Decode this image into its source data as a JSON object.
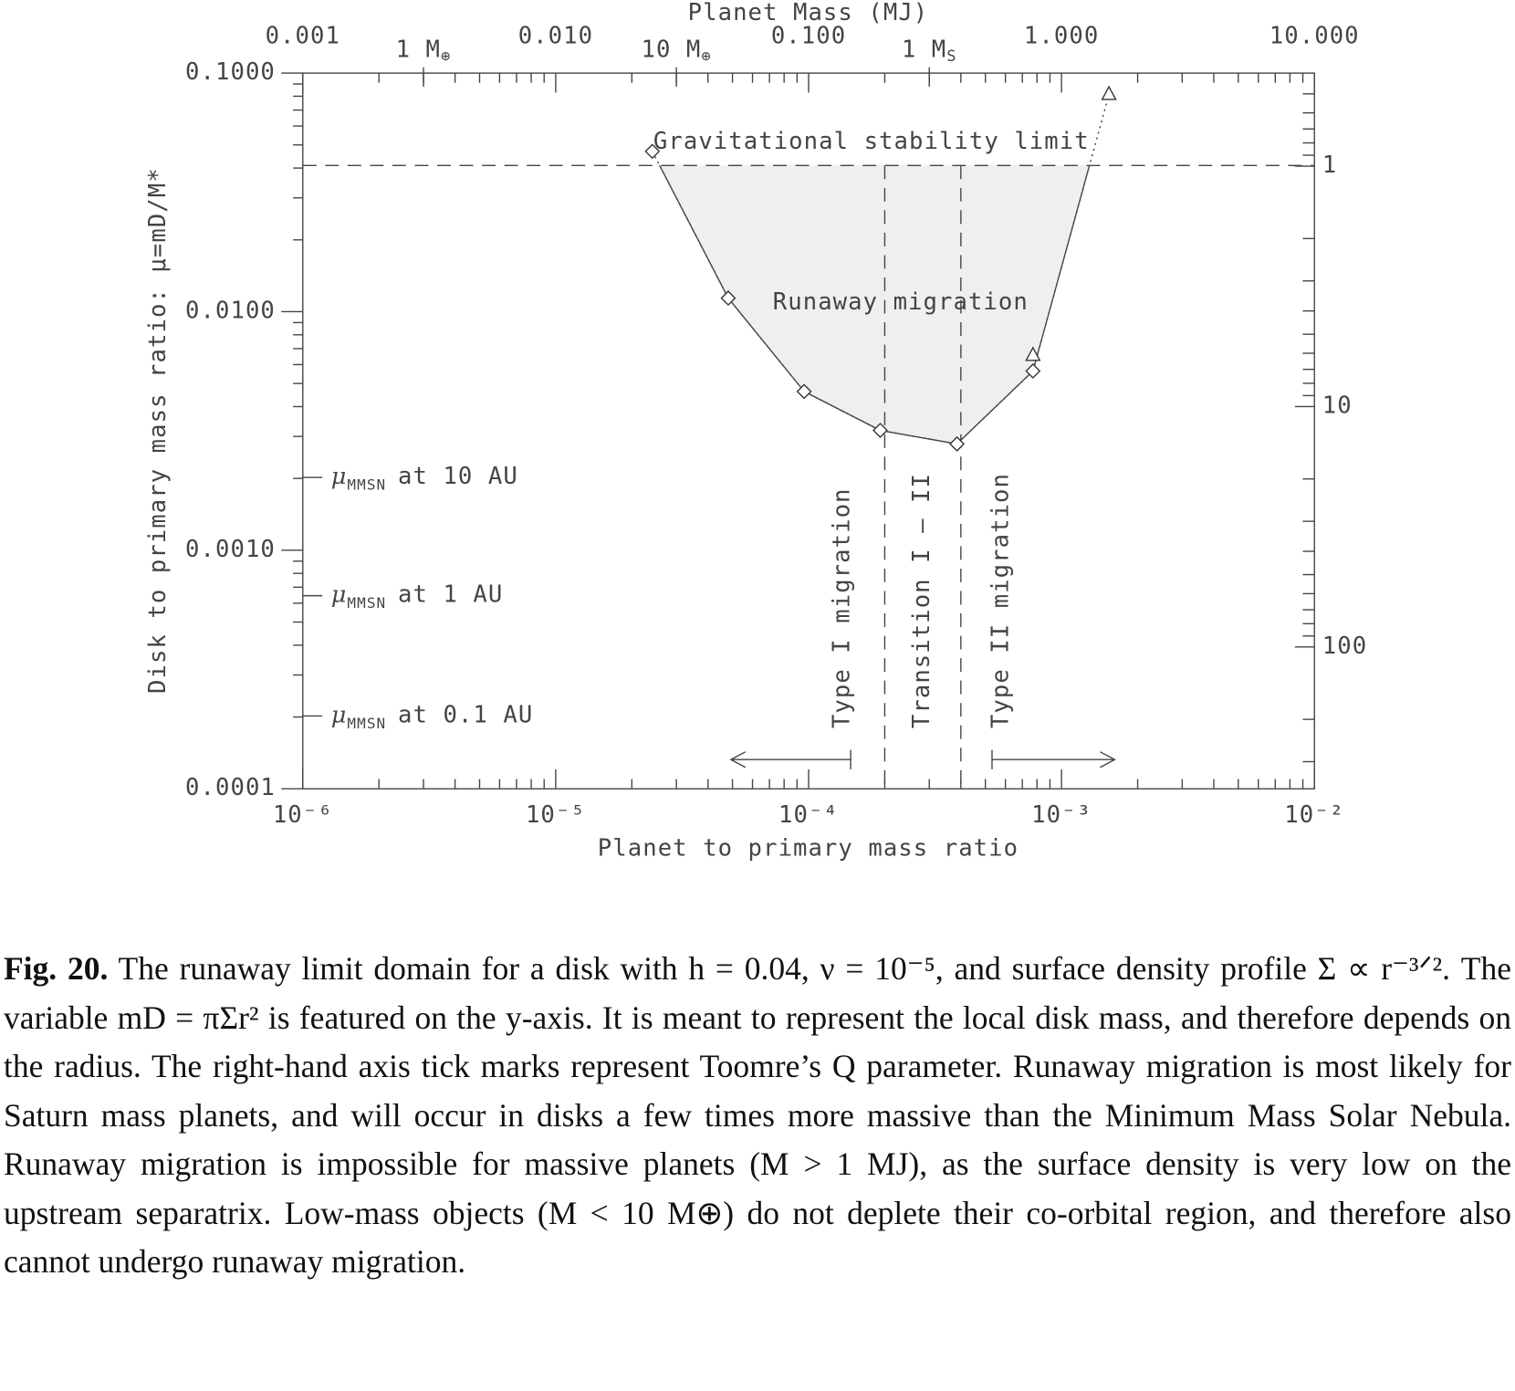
{
  "chart_data": {
    "type": "scatter",
    "x_label": "Planet to primary mass ratio",
    "y_label": "Disk to primary mass ratio: μ=mD/M*",
    "x2_label": "Planet Mass (MJ)",
    "xscale": "log",
    "yscale": "log",
    "xlim": [
      1e-06,
      0.01
    ],
    "xticks": [
      {
        "value": 1e-06,
        "label": "10⁻⁶"
      },
      {
        "value": 1e-05,
        "label": "10⁻⁵"
      },
      {
        "value": 0.0001,
        "label": "10⁻⁴"
      },
      {
        "value": 0.001,
        "label": "10⁻³"
      },
      {
        "value": 0.01,
        "label": "10⁻²"
      }
    ],
    "ylim": [
      0.0001,
      0.1
    ],
    "yticks": [
      {
        "value": 0.0001,
        "label": "0.0001"
      },
      {
        "value": 0.001,
        "label": "0.0010"
      },
      {
        "value": 0.01,
        "label": "0.0100"
      },
      {
        "value": 0.1,
        "label": "0.1000"
      }
    ],
    "x2lim": [
      0.001,
      10
    ],
    "x2ticks": [
      {
        "value": 0.001,
        "label": "0.001"
      },
      {
        "value": 0.01,
        "label": "0.010"
      },
      {
        "value": 0.1,
        "label": "0.100"
      },
      {
        "value": 1,
        "label": "1.000"
      },
      {
        "value": 10,
        "label": "10.000"
      }
    ],
    "x2_markers": [
      {
        "value": 0.003,
        "base": "1 M",
        "sub": "⊕"
      },
      {
        "value": 0.03,
        "base": "10 M",
        "sub": "⊕"
      },
      {
        "value": 0.3,
        "base": "1 M",
        "sub": "S"
      }
    ],
    "y2lim": [
      389,
      0.41
    ],
    "y2ticks": [
      1,
      10,
      100
    ],
    "color": "#333333",
    "fill_color": "#efefef",
    "series": [
      {
        "marker": "diamond",
        "x": [
          2.41e-05,
          4.81e-05,
          9.6e-05,
          0.000192,
          0.000386,
          0.000771
        ],
        "values": [
          0.047,
          0.0114,
          0.00463,
          0.00318,
          0.00279,
          0.00564
        ]
      },
      {
        "marker": "triangle",
        "x": [
          0.000771,
          0.00154
        ],
        "values": [
          0.00655,
          0.0813
        ]
      }
    ],
    "stability_limit": {
      "value": 0.041,
      "label": "Gravitational stability limit"
    },
    "region_label": "Runaway migration",
    "boundaries": [
      0.0002,
      0.0004
    ],
    "regime_labels": [
      "Type I migration",
      "Transition I – II",
      "Type II migration"
    ],
    "mmsn": [
      {
        "value": 0.00202,
        "symbol": "μ",
        "sub": "MMSN",
        "text": "at 10 AU"
      },
      {
        "value": 0.000645,
        "symbol": "μ",
        "sub": "MMSN",
        "text": "at 1 AU"
      },
      {
        "value": 0.000202,
        "symbol": "μ",
        "sub": "MMSN",
        "text": "at 0.1 AU"
      }
    ]
  },
  "caption": {
    "label": "Fig. 20.",
    "text": "The runaway limit domain for a disk with h = 0.04, ν = 10⁻⁵, and surface density profile Σ ∝ r⁻³ᐟ². The variable mD = πΣr² is featured on the y-axis. It is meant to represent the local disk mass, and therefore depends on the radius. The right-hand axis tick marks represent Toomre’s Q parameter. Runaway migration is most likely for Saturn mass planets, and will occur in disks a few times more massive than the Minimum Mass Solar Nebula. Runaway migration is impossible for massive planets (M > 1 MJ), as the surface density is very low on the upstream separatrix. Low-mass objects (M < 10 M⊕) do not deplete their co-orbital region, and therefore also cannot undergo runaway migration."
  }
}
